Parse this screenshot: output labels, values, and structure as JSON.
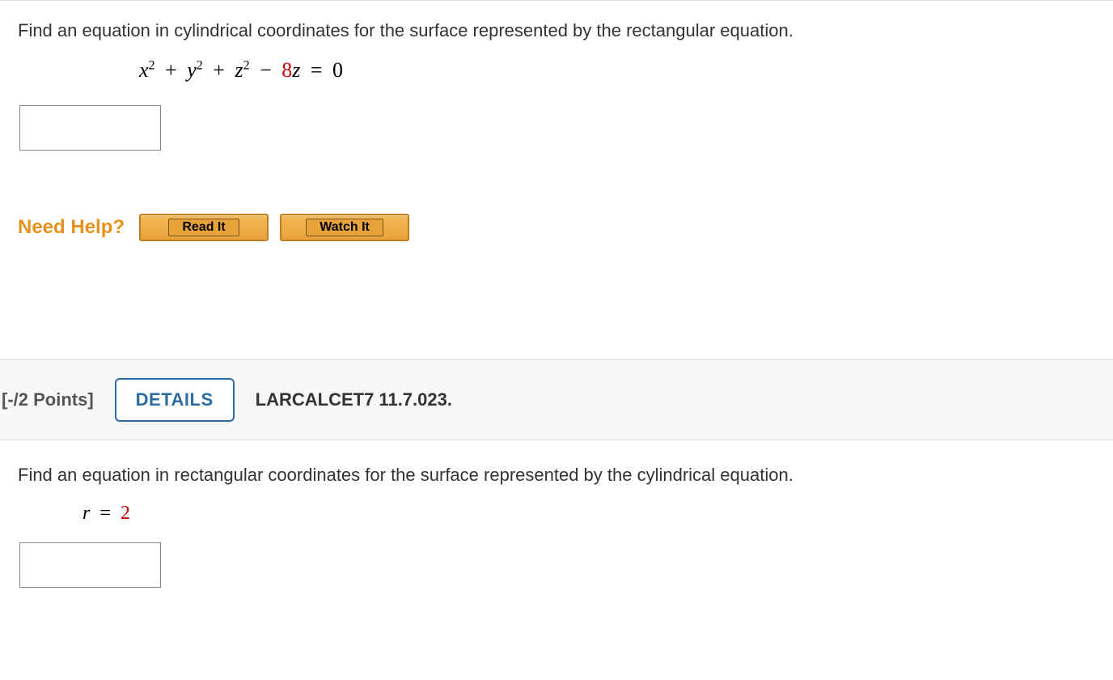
{
  "q1": {
    "prompt": "Find an equation in cylindrical coordinates for the surface represented by the rectangular equation.",
    "equation": {
      "var1": "x",
      "sup1": "2",
      "op1": "+",
      "var2": "y",
      "sup2": "2",
      "op2": "+",
      "var3": "z",
      "sup3": "2",
      "op3": "−",
      "coef": "8",
      "var4": "z",
      "eq": "=",
      "rhs": "0"
    },
    "answer": "",
    "need_help_label": "Need Help?",
    "read_it": "Read It",
    "watch_it": "Watch It"
  },
  "q2": {
    "points": "[-/2 Points]",
    "details_label": "DETAILS",
    "reference": "LARCALCET7 11.7.023.",
    "prompt": "Find an equation in rectangular coordinates for the surface represented by the cylindrical equation.",
    "equation": {
      "var": "r",
      "eq": "=",
      "rhs": "2"
    },
    "answer": ""
  },
  "colors": {
    "accent_orange": "#e8911a",
    "button_bg": "#e8a23a",
    "button_border": "#c07f1f",
    "details_blue": "#2b6ca3",
    "coef_red": "#cc0000",
    "header_bg": "#f7f7f7",
    "border_gray": "#dddddd"
  }
}
